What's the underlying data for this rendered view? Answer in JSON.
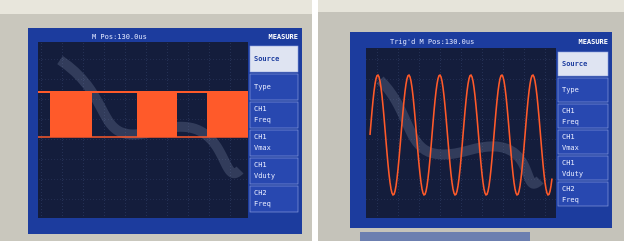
{
  "panels": [
    {
      "header": "M Pos:130.0us",
      "menu_title": "MEASURE",
      "menu": [
        [
          "Source"
        ],
        [
          "Type"
        ],
        [
          "CH1",
          "Freq"
        ],
        [
          "CH1",
          "Vmax"
        ],
        [
          "CH1",
          "Vduty"
        ],
        [
          "CH2",
          "Freq"
        ]
      ]
    },
    {
      "header": "Trig'd M Pos:130.0us",
      "menu_title": "MEASURE",
      "menu": [
        [
          "Source"
        ],
        [
          "Type"
        ],
        [
          "CH1",
          "Freq"
        ],
        [
          "CH1",
          "Vmax"
        ],
        [
          "CH1",
          "Vduty"
        ],
        [
          "CH2",
          "Freq"
        ]
      ]
    }
  ]
}
